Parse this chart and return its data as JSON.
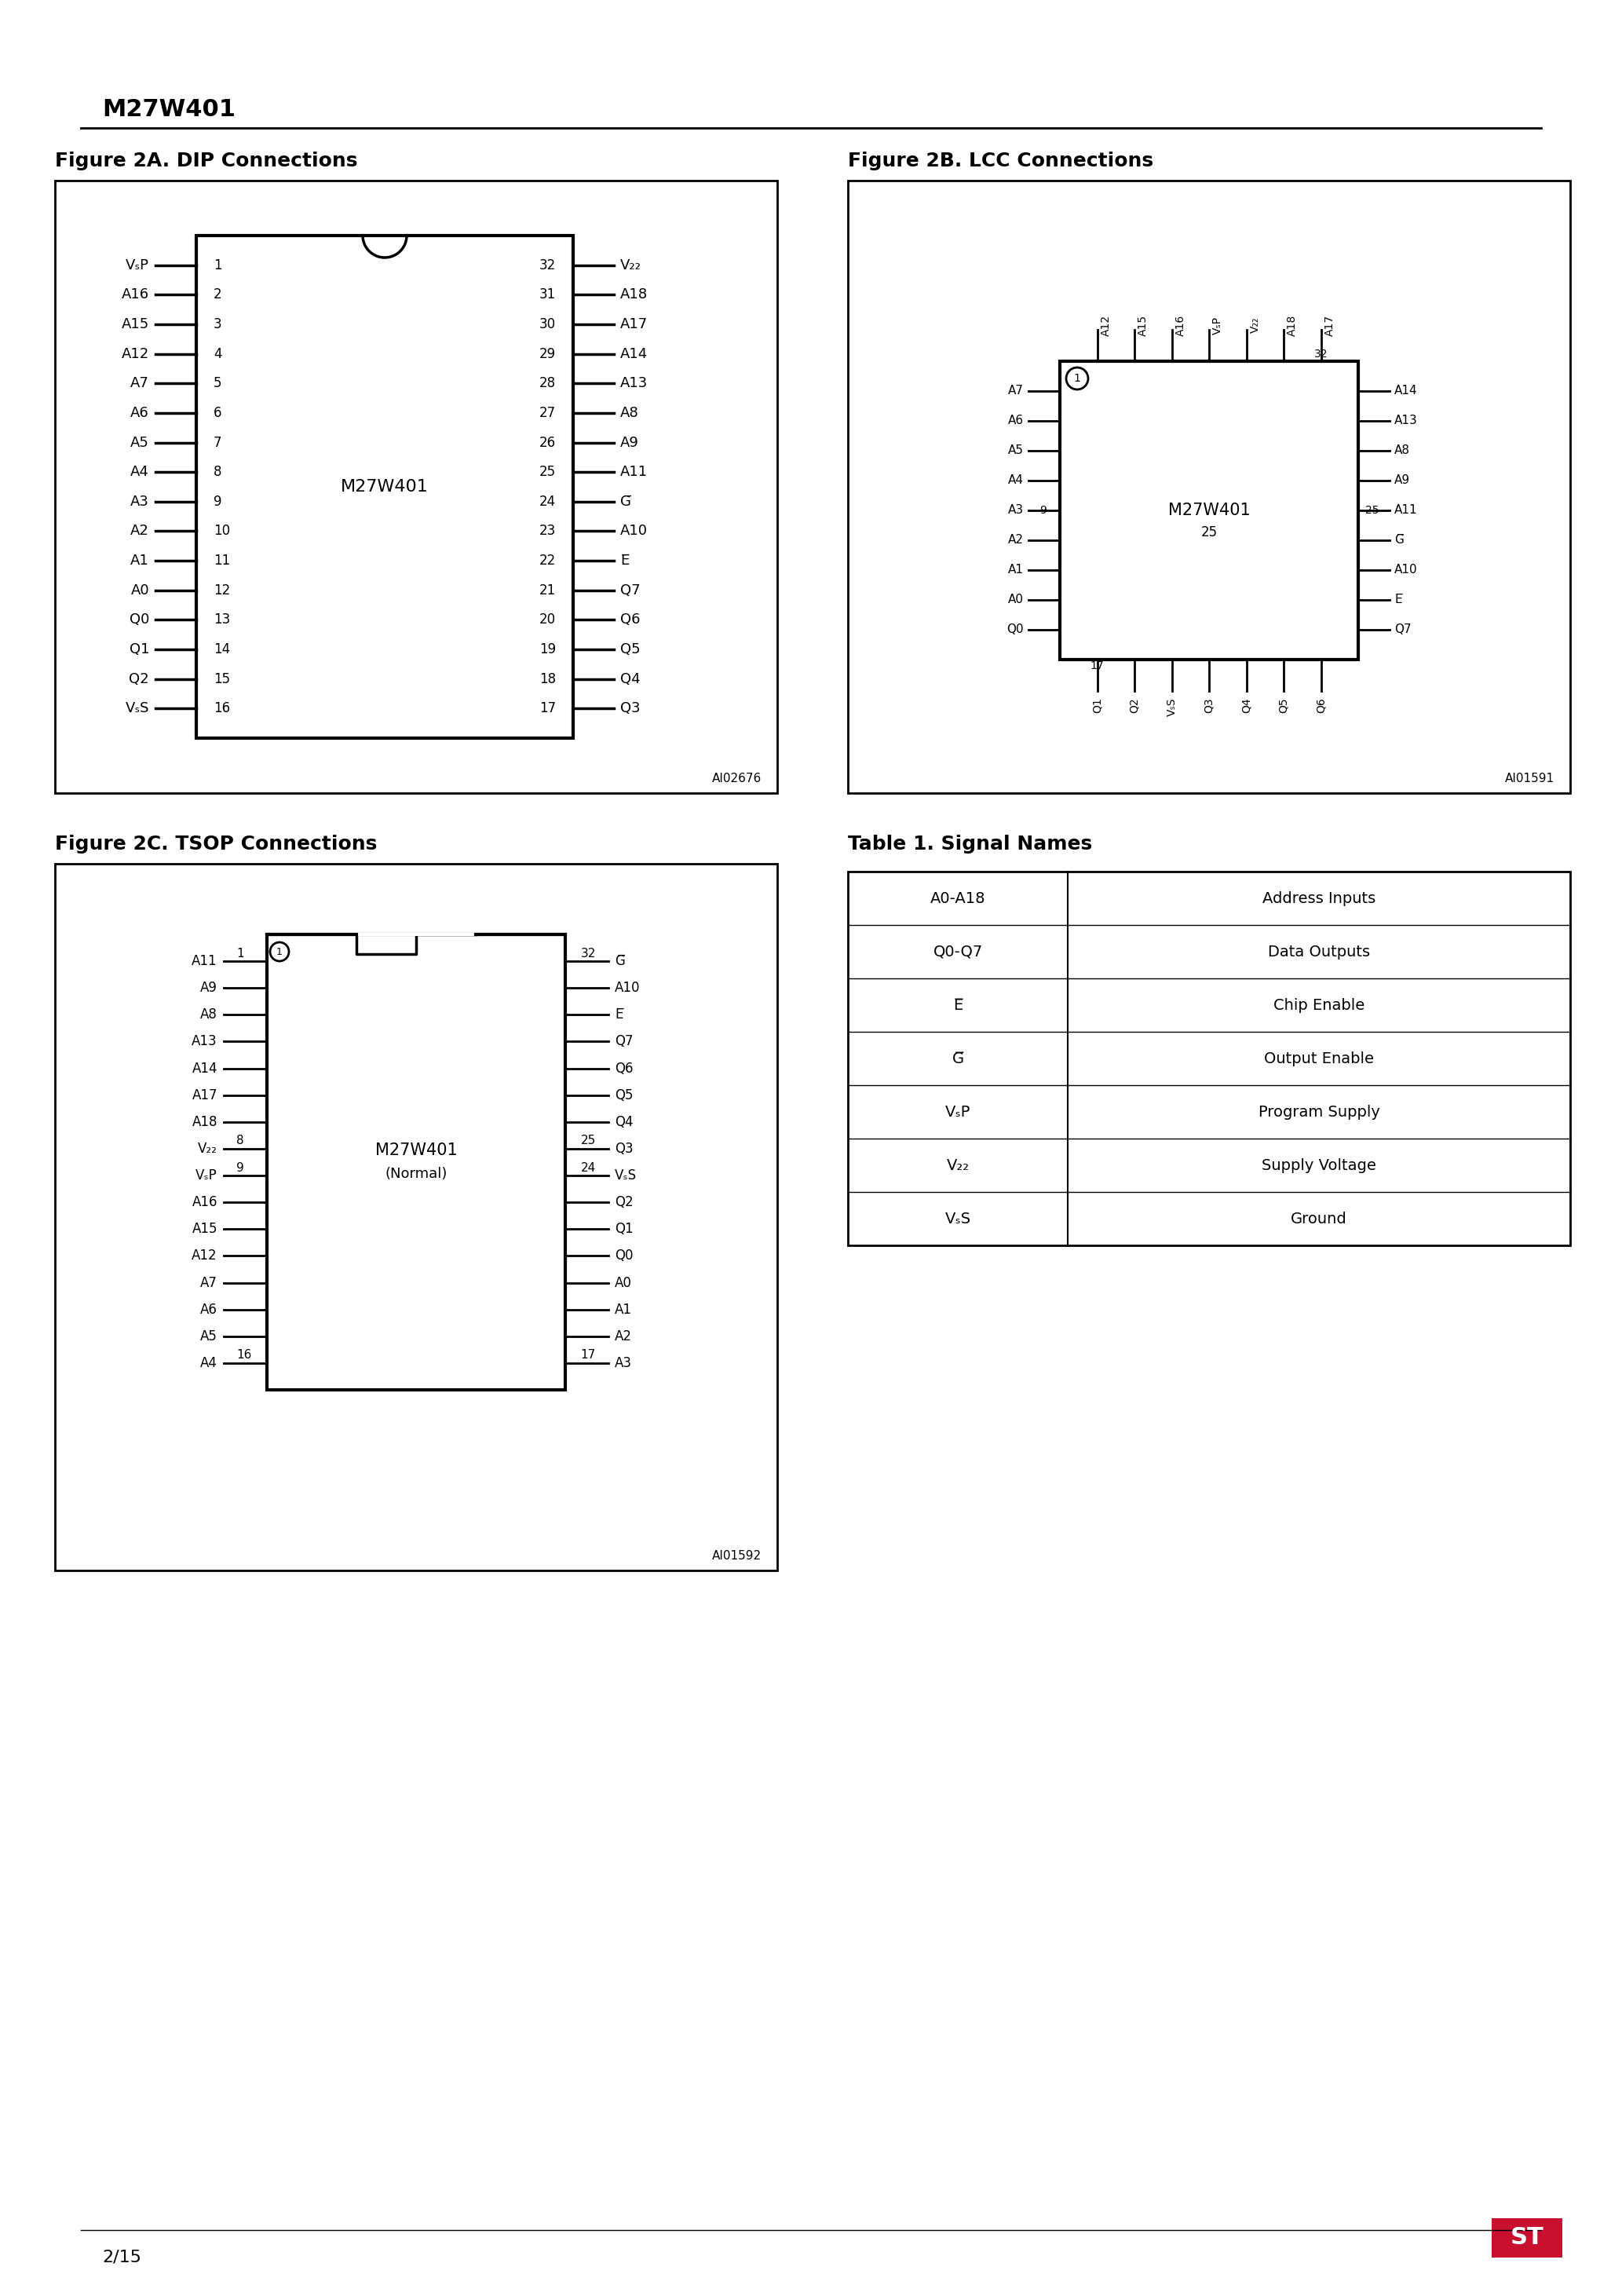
{
  "page_title": "M27W401",
  "fig2a_title": "Figure 2A. DIP Connections",
  "fig2b_title": "Figure 2B. LCC Connections",
  "fig2c_title": "Figure 2C. TSOP Connections",
  "table1_title": "Table 1. Signal Names",
  "chip_name": "M27W401",
  "dip_left_pins": [
    [
      "VₛP",
      "1"
    ],
    [
      "A16",
      "2"
    ],
    [
      "A15",
      "3"
    ],
    [
      "A12",
      "4"
    ],
    [
      "A7",
      "5"
    ],
    [
      "A6",
      "6"
    ],
    [
      "A5",
      "7"
    ],
    [
      "A4",
      "8"
    ],
    [
      "A3",
      "9"
    ],
    [
      "A2",
      "10"
    ],
    [
      "A1",
      "11"
    ],
    [
      "A0",
      "12"
    ],
    [
      "Q0",
      "13"
    ],
    [
      "Q1",
      "14"
    ],
    [
      "Q2",
      "15"
    ],
    [
      "VₛS",
      "16"
    ]
  ],
  "dip_right_pins": [
    [
      "V₂₂",
      "32"
    ],
    [
      "A18",
      "31"
    ],
    [
      "A17",
      "30"
    ],
    [
      "A14",
      "29"
    ],
    [
      "A13",
      "28"
    ],
    [
      "A8",
      "27"
    ],
    [
      "A9",
      "26"
    ],
    [
      "A11",
      "25"
    ],
    [
      "G̅",
      "24"
    ],
    [
      "A10",
      "23"
    ],
    [
      "E̅",
      "22"
    ],
    [
      "Q7",
      "21"
    ],
    [
      "Q6",
      "20"
    ],
    [
      "Q5",
      "19"
    ],
    [
      "Q4",
      "18"
    ],
    [
      "Q3",
      "17"
    ]
  ],
  "lcc_bottom_pins": [
    "Q1",
    "Q2",
    "VₛS",
    "Q3",
    "Q4",
    "Q5",
    "Q6"
  ],
  "lcc_left_pins": [
    "A7",
    "A6",
    "A5",
    "A4",
    "A3",
    "A2",
    "A1",
    "A0",
    "Q0"
  ],
  "lcc_right_pins": [
    "A14",
    "A13",
    "A8",
    "A9",
    "A11",
    "G̅",
    "A10",
    "E̅",
    "Q7"
  ],
  "lcc_top_pins": [
    "A12",
    "A15",
    "A16",
    "VₛP",
    "V₂₂",
    "A18",
    "A17"
  ],
  "tsop_left_pins": [
    "A11",
    "A9",
    "A8",
    "A13",
    "A14",
    "A17",
    "A18",
    "V₂₂",
    "VₛP",
    "A16",
    "A15",
    "A12",
    "A7",
    "A6",
    "A5",
    "A4"
  ],
  "tsop_right_pins": [
    "G̅",
    "A10",
    "E̅",
    "Q7",
    "Q6",
    "Q5",
    "Q4",
    "Q3",
    "VₛS",
    "Q2",
    "Q1",
    "Q0",
    "A0",
    "A1",
    "A2",
    "A3"
  ],
  "tsop_left_nums": [
    "1",
    "",
    "",
    "",
    "",
    "",
    "",
    "8",
    "9",
    "",
    "",
    "",
    "",
    "",
    "",
    "16"
  ],
  "tsop_right_nums": [
    "32",
    "",
    "",
    "",
    "",
    "",
    "",
    "25",
    "24",
    "",
    "",
    "",
    "",
    "",
    "",
    "17"
  ],
  "signal_names": [
    [
      "A0-A18",
      "Address Inputs"
    ],
    [
      "Q0-Q7",
      "Data Outputs"
    ],
    [
      "E̅",
      "Chip Enable"
    ],
    [
      "G̅",
      "Output Enable"
    ],
    [
      "VₛP",
      "Program Supply"
    ],
    [
      "V₂₂",
      "Supply Voltage"
    ],
    [
      "VₛS",
      "Ground"
    ]
  ],
  "ai_code_dip": "AI02676",
  "ai_code_lcc": "AI01591",
  "ai_code_tsop": "AI01592",
  "page_num": "2/15"
}
